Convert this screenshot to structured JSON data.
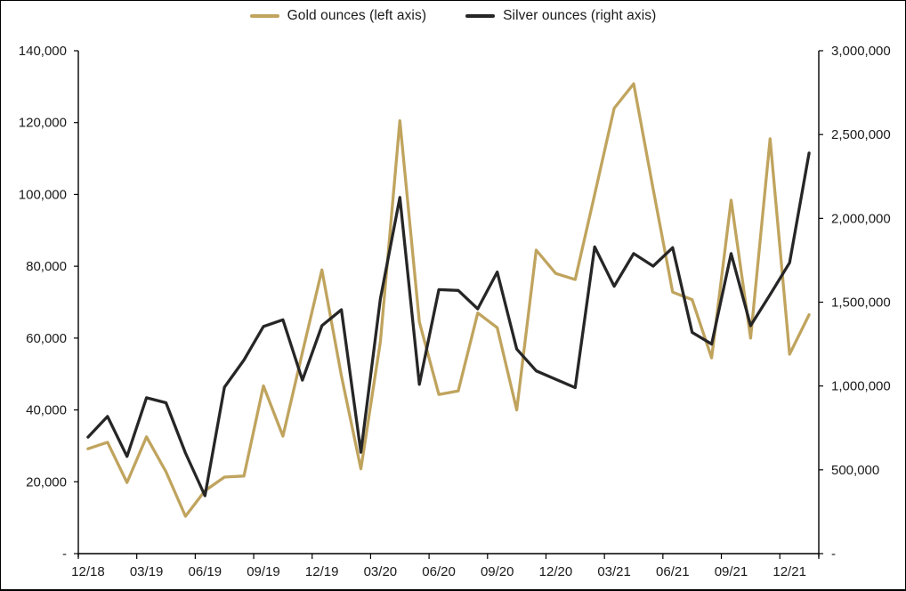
{
  "legend": {
    "gold": {
      "label": "Gold ounces (left axis)",
      "color": "#C0A45E"
    },
    "silver": {
      "label": "Silver ounces (right axis)",
      "color": "#262626"
    }
  },
  "chart_data": {
    "type": "line",
    "title": "",
    "x": [
      "12/18",
      "01/19",
      "02/19",
      "03/19",
      "04/19",
      "05/19",
      "06/19",
      "07/19",
      "08/19",
      "09/19",
      "10/19",
      "11/19",
      "12/19",
      "01/20",
      "02/20",
      "03/20",
      "04/20",
      "05/20",
      "06/20",
      "07/20",
      "08/20",
      "09/20",
      "10/20",
      "11/20",
      "12/20",
      "01/21",
      "02/21",
      "03/21",
      "04/21",
      "05/21",
      "06/21",
      "07/21",
      "08/21",
      "09/21",
      "10/21",
      "11/21",
      "12/21",
      "01/22"
    ],
    "series": [
      {
        "name": "Gold ounces (left axis)",
        "axis": "left",
        "color": "#C0A45E",
        "values": [
          29200,
          31000,
          19800,
          32500,
          22800,
          10400,
          17500,
          21300,
          21600,
          46700,
          32700,
          56000,
          79000,
          49500,
          23600,
          59000,
          120500,
          64500,
          44300,
          45300,
          67000,
          62900,
          40000,
          84500,
          78000,
          76300,
          100000,
          124000,
          130800,
          101500,
          72800,
          70700,
          54500,
          98400,
          60000,
          115500,
          55500,
          66500
        ]
      },
      {
        "name": "Silver ounces (right axis)",
        "axis": "right",
        "color": "#262626",
        "values": [
          695000,
          818000,
          580000,
          930000,
          900000,
          600000,
          345000,
          993000,
          1155000,
          1355000,
          1395000,
          1035000,
          1360000,
          1455000,
          605000,
          1520000,
          2125000,
          1010000,
          1575000,
          1570000,
          1460000,
          1680000,
          1220000,
          1090000,
          1040000,
          990000,
          1830000,
          1595000,
          1790000,
          1715000,
          1825000,
          1320000,
          1250000,
          1790000,
          1360000,
          1545000,
          1735000,
          2390000
        ]
      }
    ],
    "left_axis": {
      "min": 0,
      "max": 140000,
      "step": 20000,
      "tick_labels": [
        "-",
        "20,000",
        "40,000",
        "60,000",
        "80,000",
        "100,000",
        "120,000",
        "140,000"
      ]
    },
    "right_axis": {
      "min": 0,
      "max": 3000000,
      "step": 500000,
      "tick_labels": [
        "-",
        "500,000",
        "1,000,000",
        "1,500,000",
        "2,000,000",
        "2,500,000",
        "3,000,000"
      ]
    },
    "x_axis_tick_labels": [
      "12/18",
      "03/19",
      "06/19",
      "09/19",
      "12/19",
      "03/20",
      "06/20",
      "09/20",
      "12/20",
      "03/21",
      "06/21",
      "09/21",
      "12/21"
    ],
    "x_label_every_n_points": 3,
    "grid": false,
    "legend_position": "top"
  }
}
